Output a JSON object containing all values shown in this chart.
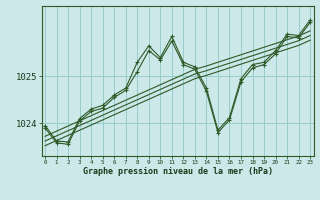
{
  "xlabel": "Graphe pression niveau de la mer (hPa)",
  "bg_color": "#cce8e8",
  "grid_color": "#99cccc",
  "line_color": "#2d5a27",
  "hours": [
    0,
    1,
    2,
    3,
    4,
    5,
    6,
    7,
    8,
    9,
    10,
    11,
    12,
    13,
    14,
    15,
    16,
    17,
    18,
    19,
    20,
    21,
    22,
    23
  ],
  "yticks": [
    1024,
    1025
  ],
  "ylim": [
    1023.3,
    1026.5
  ],
  "xlim": [
    -0.3,
    23.3
  ],
  "series1": [
    1023.95,
    1023.62,
    1023.6,
    1024.1,
    1024.3,
    1024.38,
    1024.6,
    1024.75,
    1025.3,
    1025.65,
    1025.4,
    1025.85,
    1025.3,
    1025.2,
    1024.75,
    1023.85,
    1024.12,
    1024.95,
    1025.25,
    1025.3,
    1025.55,
    1025.9,
    1025.87,
    1026.2
  ],
  "series2": [
    1023.9,
    1023.58,
    1023.55,
    1024.05,
    1024.25,
    1024.32,
    1024.55,
    1024.7,
    1025.1,
    1025.55,
    1025.35,
    1025.75,
    1025.25,
    1025.15,
    1024.68,
    1023.8,
    1024.07,
    1024.88,
    1025.18,
    1025.25,
    1025.48,
    1025.85,
    1025.82,
    1026.15
  ],
  "linear1": [
    1023.72,
    1023.83,
    1023.94,
    1024.05,
    1024.16,
    1024.27,
    1024.38,
    1024.49,
    1024.6,
    1024.71,
    1024.82,
    1024.93,
    1025.04,
    1025.15,
    1025.22,
    1025.3,
    1025.38,
    1025.46,
    1025.54,
    1025.62,
    1025.7,
    1025.78,
    1025.86,
    1025.97
  ],
  "linear2": [
    1023.62,
    1023.73,
    1023.84,
    1023.95,
    1024.06,
    1024.17,
    1024.28,
    1024.39,
    1024.5,
    1024.61,
    1024.72,
    1024.83,
    1024.94,
    1025.05,
    1025.12,
    1025.2,
    1025.28,
    1025.36,
    1025.44,
    1025.52,
    1025.6,
    1025.68,
    1025.76,
    1025.87
  ],
  "linear3": [
    1023.52,
    1023.63,
    1023.74,
    1023.85,
    1023.96,
    1024.07,
    1024.18,
    1024.29,
    1024.4,
    1024.51,
    1024.62,
    1024.73,
    1024.84,
    1024.95,
    1025.02,
    1025.1,
    1025.18,
    1025.26,
    1025.34,
    1025.42,
    1025.5,
    1025.58,
    1025.66,
    1025.77
  ]
}
